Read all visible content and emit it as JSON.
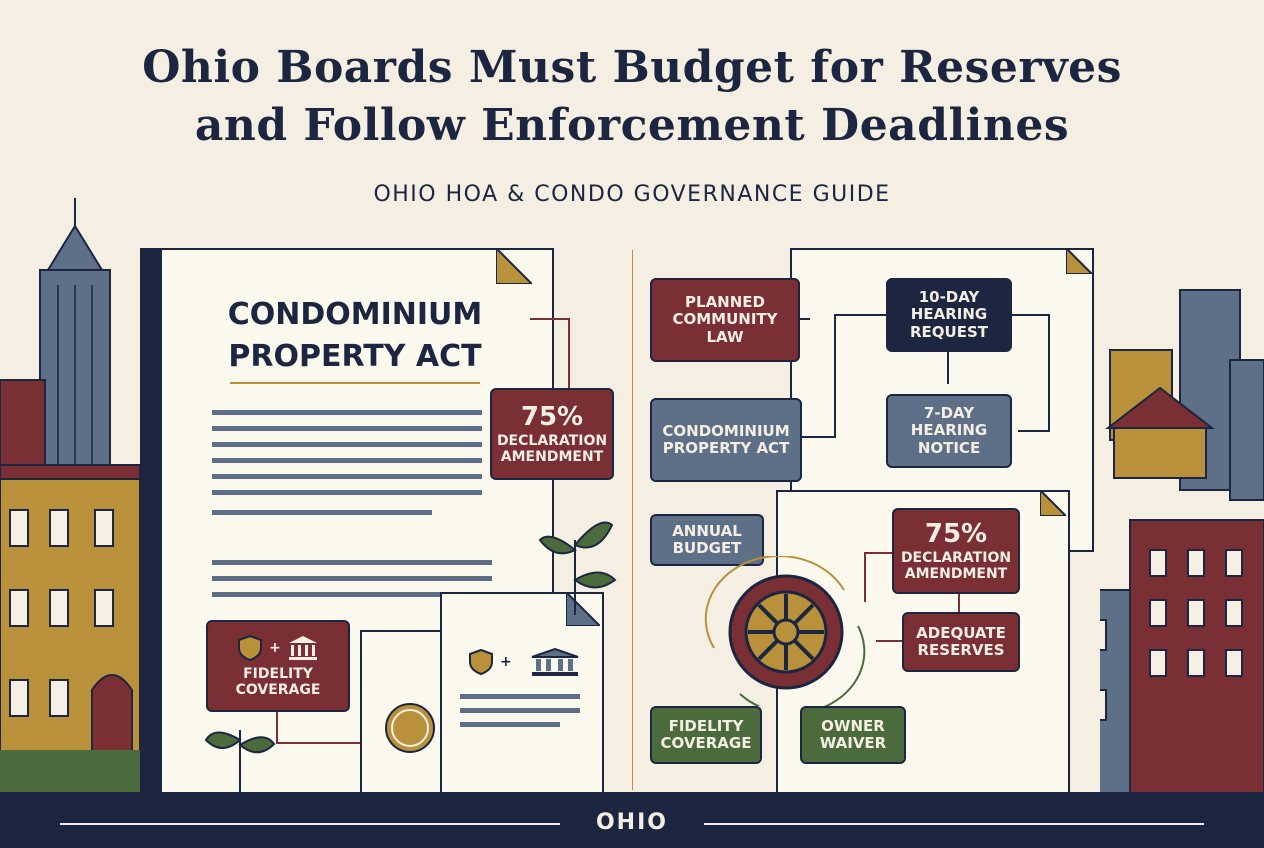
{
  "header": {
    "title_line1": "Ohio Boards Must Budget for Reserves",
    "title_line2": "and Follow Enforcement Deadlines",
    "subtitle": "OHIO HOA & CONDO GOVERNANCE GUIDE"
  },
  "left_document": {
    "heading_line1": "CONDOMINIUM",
    "heading_line2": "PROPERTY ACT",
    "callout_percent": "75%",
    "callout_label": "DECLARATION AMENDMENT",
    "fidelity_label": "FIDELITY COVERAGE",
    "plus_sign": "+"
  },
  "flow": {
    "planned_community": "PLANNED COMMUNITY LAW",
    "condo_act": "CONDOMINIUM PROPERTY ACT",
    "hearing_request": "10-DAY HEARING REQUEST",
    "hearing_notice": "7-DAY HEARING NOTICE",
    "annual_budget": "ANNUAL BUDGET",
    "amendment_percent": "75%",
    "amendment_label": "DECLARATION AMENDMENT",
    "reserves": "ADEQUATE RESERVES",
    "fidelity": "FIDELITY COVERAGE",
    "waiver": "OWNER WAIVER"
  },
  "footer": {
    "state": "OHIO"
  },
  "colors": {
    "navy": "#1c2640",
    "maroon": "#7a2f35",
    "slate": "#5e7087",
    "green": "#4c6b3c",
    "gold": "#b8913a",
    "paper": "#f4efe2"
  },
  "icons": [
    "shield-icon",
    "courthouse-icon",
    "wheel-icon",
    "seal-icon",
    "leaf-icon"
  ]
}
